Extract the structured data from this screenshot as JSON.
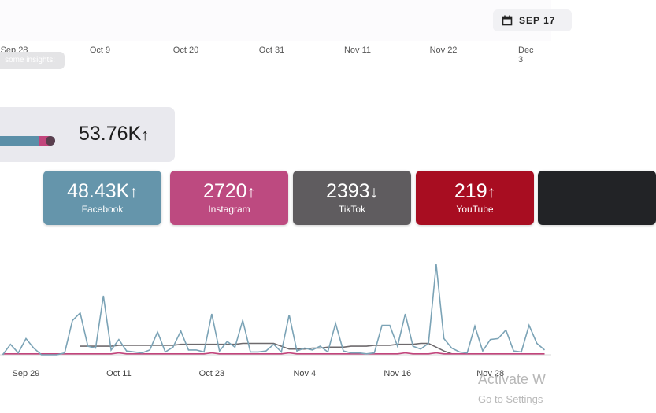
{
  "header": {
    "date_button": "SEP 17"
  },
  "timeline": {
    "labels": [
      "Sep 28",
      "Oct 9",
      "Oct 20",
      "Oct 31",
      "Nov 11",
      "Nov 22",
      "Dec 3"
    ]
  },
  "tooltip": "some insights!",
  "total": {
    "value": "53.76K",
    "arrow": "↑"
  },
  "platforms": [
    {
      "value": "48.43K",
      "arrow": "↑",
      "name": "Facebook",
      "color": "#6595ab"
    },
    {
      "value": "2720",
      "arrow": "↑",
      "name": "Instagram",
      "color": "#bd4a80"
    },
    {
      "value": "2393",
      "arrow": "↓",
      "name": "TikTok",
      "color": "#5f5c5f"
    },
    {
      "value": "219",
      "arrow": "↑",
      "name": "YouTube",
      "color": "#a80d21"
    },
    {
      "color": "#222326"
    }
  ],
  "chart_data": {
    "type": "line",
    "categories": [
      null,
      null,
      null,
      "Sep 29",
      null,
      null,
      null,
      null,
      null,
      null,
      null,
      null,
      null,
      null,
      null,
      "Oct 11",
      null,
      null,
      null,
      null,
      null,
      null,
      null,
      null,
      null,
      null,
      null,
      "Oct 23",
      null,
      null,
      null,
      null,
      null,
      null,
      null,
      null,
      null,
      null,
      null,
      "Nov 4",
      null,
      null,
      null,
      null,
      null,
      null,
      null,
      null,
      null,
      null,
      null,
      "Nov 16",
      null,
      null,
      null,
      null,
      null,
      null,
      null,
      null,
      null,
      null,
      null,
      "Nov 28",
      null,
      null,
      null,
      null,
      null,
      null,
      null
    ],
    "ylim": [
      0,
      100
    ],
    "series": [
      {
        "color": "#7ba3b6",
        "values": [
          0,
          11,
          2,
          17,
          7,
          0,
          0,
          0,
          2,
          36,
          44,
          9,
          7,
          62,
          5,
          16,
          4,
          3,
          2,
          5,
          24,
          3,
          8,
          25,
          5,
          5,
          3,
          43,
          4,
          14,
          8,
          36,
          3,
          3,
          4,
          11,
          3,
          42,
          4,
          7,
          5,
          9,
          3,
          33,
          4,
          2,
          2,
          1,
          2,
          31,
          31,
          9,
          43,
          9,
          6,
          12,
          95,
          17,
          7,
          3,
          2,
          30,
          4,
          16,
          17,
          26,
          4,
          3,
          31,
          12,
          5
        ]
      },
      {
        "color": "#c2457c",
        "values": [
          1,
          1,
          1,
          1,
          1,
          1,
          1,
          1,
          1,
          1,
          1,
          1,
          1,
          1,
          1,
          2,
          1,
          1,
          1,
          1,
          1,
          1,
          1,
          1,
          1,
          1,
          1,
          2,
          1,
          1,
          1,
          1,
          1,
          1,
          1,
          1,
          1,
          2,
          1,
          1,
          1,
          1,
          1,
          1,
          1,
          1,
          1,
          1,
          1,
          1,
          1,
          1,
          2,
          1,
          1,
          1,
          2,
          1,
          1,
          1,
          1,
          1,
          1,
          1,
          1,
          1,
          1,
          1,
          1,
          1,
          1
        ]
      },
      {
        "color": "#6e6a6d",
        "values": [
          null,
          null,
          null,
          null,
          null,
          null,
          null,
          null,
          null,
          null,
          9,
          9,
          9,
          9,
          9,
          10,
          10,
          10,
          10,
          10,
          10,
          10,
          10,
          11,
          11,
          11,
          11,
          11,
          11,
          11,
          11,
          12,
          12,
          12,
          12,
          12,
          9,
          6,
          6,
          6,
          7,
          7,
          8,
          8,
          8,
          9,
          9,
          9,
          10,
          10,
          10,
          11,
          11,
          11,
          12,
          12,
          8,
          4,
          1,
          null,
          null,
          null,
          null,
          null,
          null,
          null,
          null,
          null,
          null,
          null,
          null
        ]
      }
    ]
  },
  "watermark": {
    "line1": "Activate W",
    "line2": "Go to Settings"
  }
}
